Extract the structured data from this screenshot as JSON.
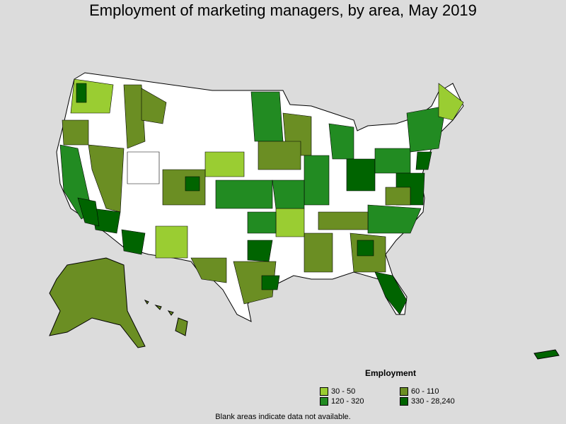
{
  "title": "Employment of marketing managers, by area, May 2019",
  "legend": {
    "title": "Employment",
    "items": [
      {
        "label": "30 - 50",
        "color": "#9acd32"
      },
      {
        "label": "60 - 110",
        "color": "#6b8e23"
      },
      {
        "label": "120 - 320",
        "color": "#228b22"
      },
      {
        "label": "330 - 28,240",
        "color": "#006400"
      }
    ]
  },
  "footnote": "Blank areas indicate data not available.",
  "colors": {
    "background": "#dcdcdc",
    "no_data": "#ffffff",
    "border": "#000000"
  }
}
